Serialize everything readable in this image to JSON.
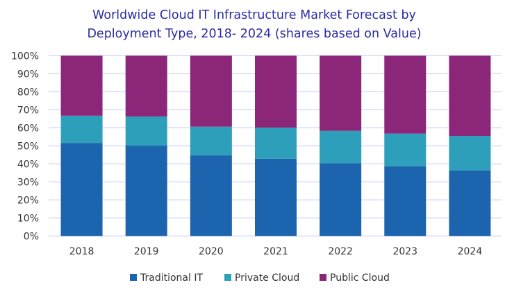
{
  "chart_data": {
    "type": "bar",
    "stacked": true,
    "title": "Worldwide Cloud IT Infrastructure Market Forecast by Deployment Type, 2018- 2024 (shares based on Value)",
    "title_lines": [
      "Worldwide Cloud IT Infrastructure Market Forecast by",
      "Deployment Type, 2018- 2024 (shares based on Value)"
    ],
    "xlabel": "",
    "ylabel": "",
    "ylim": [
      0,
      100
    ],
    "y_ticks": [
      "0%",
      "10%",
      "20%",
      "30%",
      "40%",
      "50%",
      "60%",
      "70%",
      "80%",
      "90%",
      "100%"
    ],
    "grid": true,
    "legend_position": "bottom",
    "categories": [
      "2018",
      "2019",
      "2020",
      "2021",
      "2022",
      "2023",
      "2024"
    ],
    "series": [
      {
        "name": "Traditional IT",
        "color": "#1c64ae",
        "values": [
          51.6,
          50.1,
          44.7,
          42.9,
          40.4,
          38.6,
          36.4
        ]
      },
      {
        "name": "Private Cloud",
        "color": "#2e9fbb",
        "values": [
          15.1,
          16.2,
          15.9,
          17.2,
          17.9,
          18.2,
          19.1
        ]
      },
      {
        "name": "Public Cloud",
        "color": "#8b2679",
        "values": [
          33.3,
          33.7,
          39.4,
          39.9,
          41.7,
          43.2,
          44.5
        ]
      }
    ]
  }
}
